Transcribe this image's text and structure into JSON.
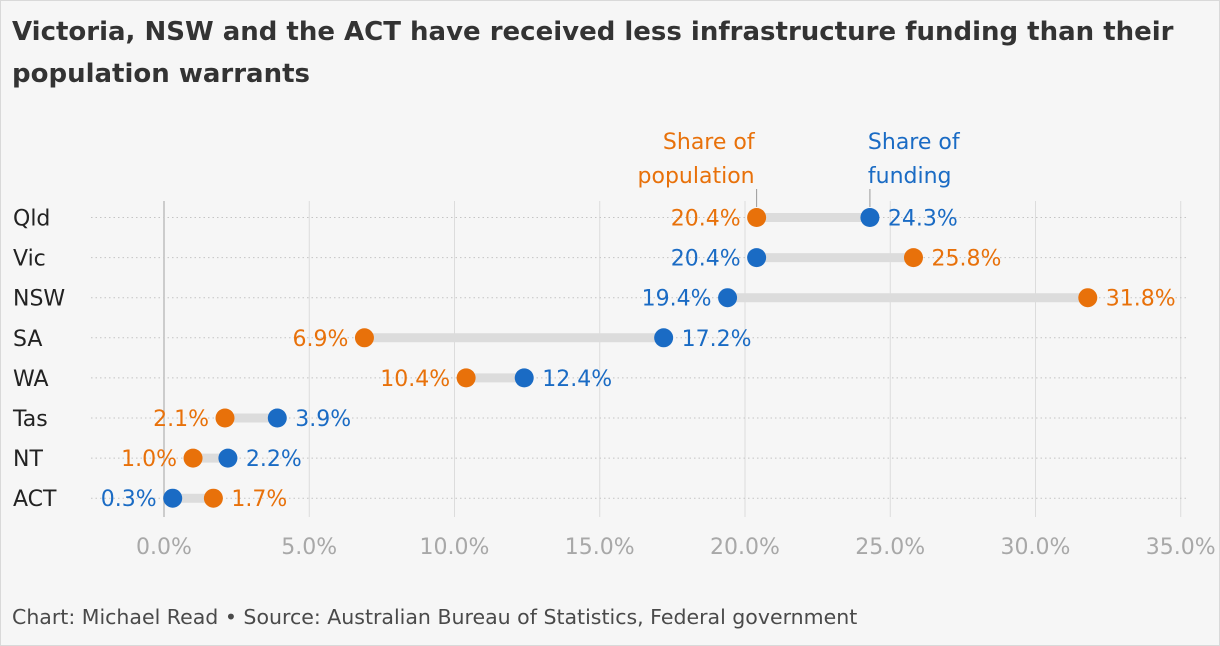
{
  "title": "Victoria, NSW and the ACT have received less infrastructure funding than their population warrants",
  "source": "Chart: Michael Read • Source: Australian Bureau of Statistics, Federal government",
  "chart_data": {
    "type": "dumbbell",
    "categories": [
      "Qld",
      "Vic",
      "NSW",
      "SA",
      "WA",
      "Tas",
      "NT",
      "ACT"
    ],
    "series": [
      {
        "name": "Share of population",
        "color": "#e8710a",
        "values": [
          20.4,
          25.8,
          31.8,
          6.9,
          10.4,
          2.1,
          1.0,
          1.7
        ]
      },
      {
        "name": "Share of funding",
        "color": "#1a6bc4",
        "values": [
          24.3,
          20.4,
          19.4,
          17.2,
          12.4,
          3.9,
          2.2,
          0.3
        ]
      }
    ],
    "value_labels": {
      "Share of population": [
        "20.4%",
        "25.8%",
        "31.8%",
        "6.9%",
        "10.4%",
        "2.1%",
        "1.0%",
        "1.7%"
      ],
      "Share of funding": [
        "24.3%",
        "20.4%",
        "19.4%",
        "17.2%",
        "12.4%",
        "3.9%",
        "2.2%",
        "0.3%"
      ]
    },
    "x_ticks": [
      "0.0%",
      "5.0%",
      "10.0%",
      "15.0%",
      "20.0%",
      "25.0%",
      "30.0%",
      "35.0%"
    ],
    "x_tick_values": [
      0,
      5,
      10,
      15,
      20,
      25,
      30,
      35
    ],
    "xlim": [
      0,
      35
    ],
    "legend_labels": {
      "population": [
        "Share of",
        "population"
      ],
      "funding": [
        "Share of",
        "funding"
      ]
    },
    "legend_placement": "annotations above first row",
    "grid": true
  }
}
